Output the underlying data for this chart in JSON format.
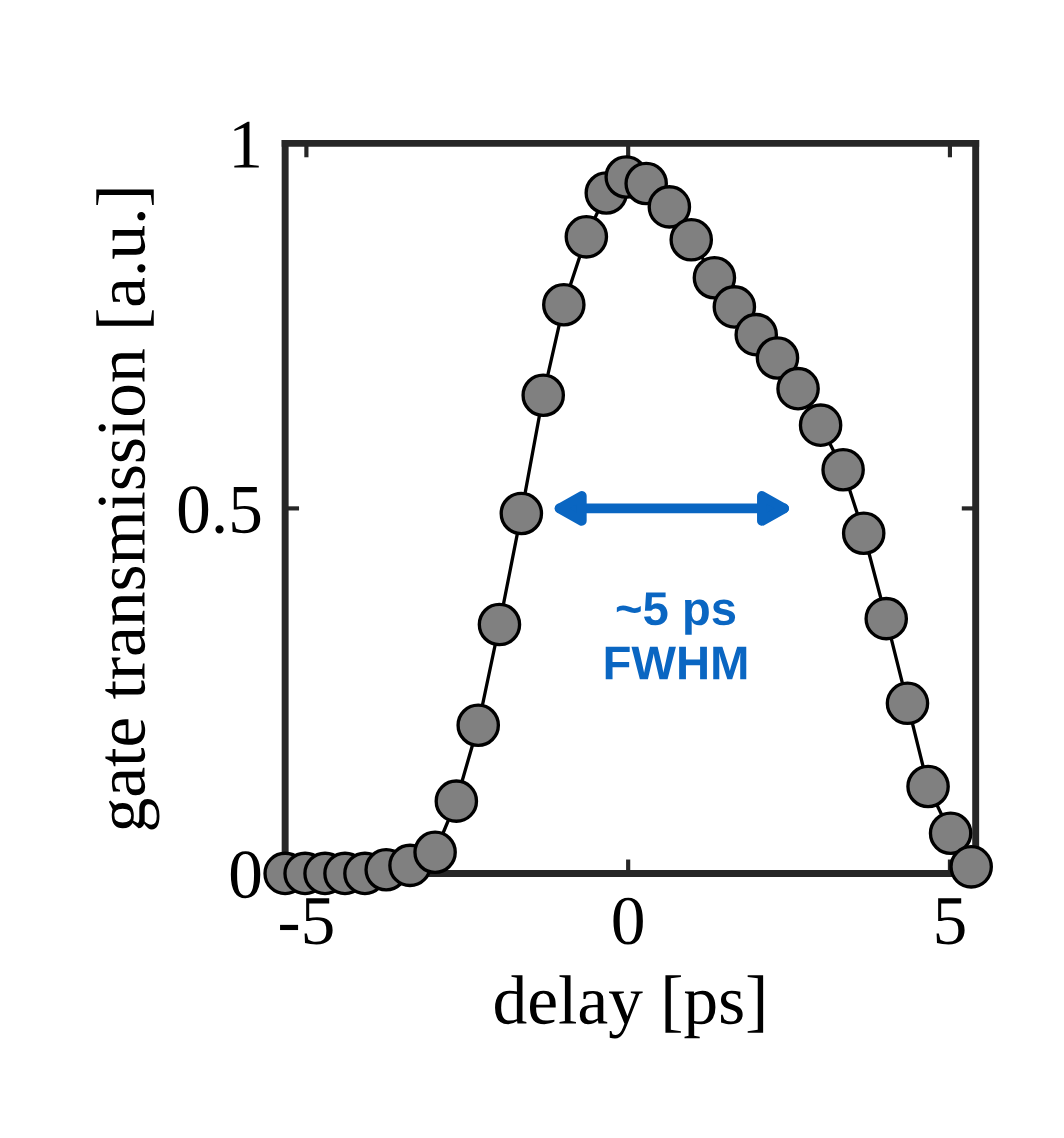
{
  "chart_data": {
    "type": "line",
    "xlabel": "delay [ps]",
    "ylabel": "gate transmission [a.u.]",
    "x": [
      -5.33,
      -5.02,
      -4.71,
      -4.4,
      -4.09,
      -3.76,
      -3.39,
      -3.0,
      -2.67,
      -2.33,
      -2.0,
      -1.66,
      -1.32,
      -1.0,
      -0.65,
      -0.34,
      -0.03,
      0.28,
      0.64,
      0.98,
      1.34,
      1.65,
      1.99,
      2.32,
      2.64,
      2.99,
      3.34,
      3.66,
      4.01,
      4.34,
      4.66,
      5.01,
      5.33
    ],
    "series": [
      {
        "color": "#808080",
        "values": [
          0.0,
          0.0,
          0.0,
          0.0,
          0.0,
          0.005,
          0.011,
          0.029,
          0.099,
          0.203,
          0.341,
          0.493,
          0.655,
          0.779,
          0.872,
          0.932,
          0.954,
          0.945,
          0.913,
          0.868,
          0.816,
          0.776,
          0.738,
          0.706,
          0.664,
          0.614,
          0.553,
          0.466,
          0.349,
          0.233,
          0.119,
          0.055,
          0.009
        ]
      }
    ],
    "marker": "circle",
    "line_style": "solid",
    "grid": false,
    "xlim": [
      -5.33,
      5.4
    ],
    "ylim": [
      0,
      1
    ],
    "xticks": [
      -5,
      0,
      5
    ],
    "yticks": [
      0,
      0.5,
      1
    ],
    "annotations": [
      "~5 ps\nFWHM"
    ]
  }
}
